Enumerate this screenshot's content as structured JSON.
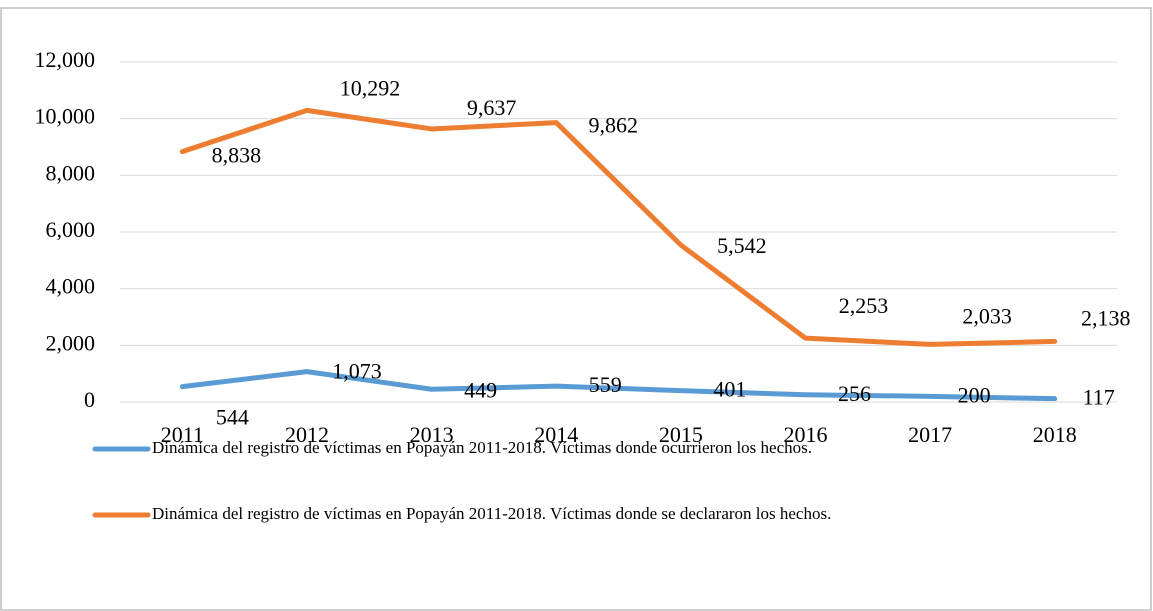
{
  "chart_data": {
    "type": "line",
    "categories": [
      "2011",
      "2012",
      "2013",
      "2014",
      "2015",
      "2016",
      "2017",
      "2018"
    ],
    "series": [
      {
        "name": "Dinámica del registro de víctimas en Popayán 2011-2018. Víctimas donde ocurrieron los hechos.",
        "color": "#5b9bd5",
        "values": [
          544,
          1073,
          449,
          559,
          401,
          256,
          200,
          117
        ],
        "value_labels": [
          "544",
          "1,073",
          "449",
          "559",
          "401",
          "256",
          "200",
          "117"
        ]
      },
      {
        "name": "Dinámica del registro de víctimas en Popayán 2011-2018. Víctimas donde se declararon los hechos.",
        "color": "#ed7d31",
        "values": [
          8838,
          10292,
          9637,
          9862,
          5542,
          2253,
          2033,
          2138
        ],
        "value_labels": [
          "8,838",
          "10,292",
          "9,637",
          "9,862",
          "5,542",
          "2,253",
          "2,033",
          "2,138"
        ]
      }
    ],
    "ylim": [
      0,
      12000
    ],
    "yticks": [
      0,
      {
        "value": 2000,
        "label": "2,000"
      },
      {
        "value": 4000,
        "label": "4,000"
      },
      {
        "value": 6000,
        "label": "6,000"
      },
      {
        "value": 8000,
        "label": "8,000"
      },
      {
        "value": 10000,
        "label": "10,000"
      },
      {
        "value": 12000,
        "label": "12,000"
      }
    ],
    "grid": true,
    "legend": "bottom"
  }
}
